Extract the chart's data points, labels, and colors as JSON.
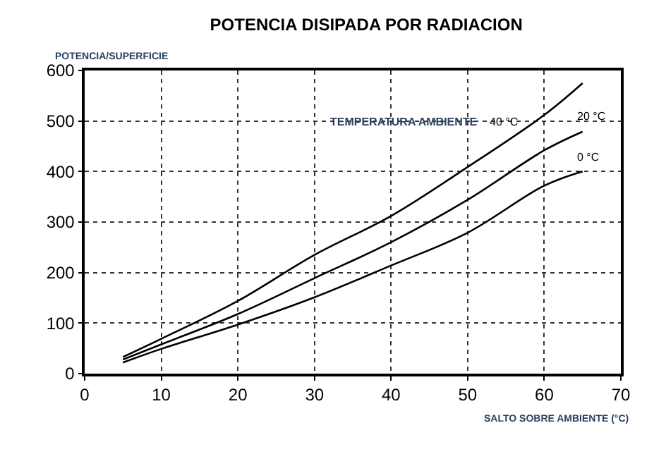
{
  "chart_data": {
    "type": "line",
    "title": "POTENCIA DISIPADA POR RADIACION",
    "xlabel": "SALTO SOBRE AMBIENTE (°C)",
    "ylabel": "POTENCIA/SUPERFICIE",
    "annotations": [
      "TEMPERATURA AMBIENTE"
    ],
    "x": [
      5,
      10,
      20,
      30,
      40,
      50,
      60,
      65
    ],
    "series": [
      {
        "name": "40 °C",
        "color": "#000000",
        "values": [
          33,
          69,
          144,
          235,
          312,
          409,
          512,
          575
        ]
      },
      {
        "name": "20 °C",
        "color": "#000000",
        "values": [
          28,
          58,
          118,
          189,
          260,
          344,
          442,
          479
        ]
      },
      {
        "name": "0 °C",
        "color": "#000000",
        "values": [
          22,
          49,
          97,
          151,
          214,
          279,
          372,
          400
        ]
      }
    ],
    "xlim": [
      0,
      70
    ],
    "xticks": [
      0,
      10,
      20,
      30,
      40,
      50,
      60,
      70
    ],
    "ylim": [
      0,
      600
    ],
    "yticks": [
      0,
      100,
      200,
      300,
      400,
      500,
      600
    ],
    "grid": true,
    "legend": false,
    "marker": "none",
    "line_style": "solid"
  }
}
